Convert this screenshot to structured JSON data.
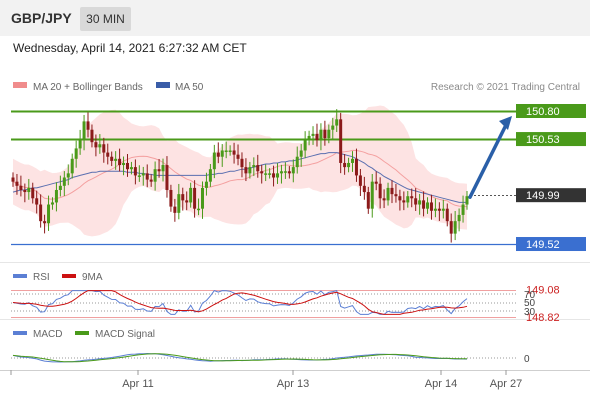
{
  "header": {
    "symbol": "GBP/JPY",
    "timeframe": "30 MIN"
  },
  "datetime": "Wednesday, April 14, 2021 6:27:32 AM CET",
  "legend": {
    "items": [
      {
        "label": "MA 20 + Bollinger Bands",
        "color": "#f08c8c"
      },
      {
        "label": "MA 50",
        "color": "#3a5da8"
      }
    ],
    "research": "Research © 2021 Trading Central"
  },
  "rsi_legend": [
    {
      "label": "RSI",
      "color": "#5b7fd4"
    },
    {
      "label": "9MA",
      "color": "#cc1111"
    }
  ],
  "macd_legend": [
    {
      "label": "MACD",
      "color": "#5b7fd4"
    },
    {
      "label": "MACD Signal",
      "color": "#4a9a1a"
    }
  ],
  "colors": {
    "resistance": "#4a9a1a",
    "support": "#3a6fd0",
    "target_low": "#cc2222",
    "current": "#333333",
    "bull_candle": "#4a9a1a",
    "bear_candle": "#8b1a1a",
    "bollinger_fill": "#fde3e3",
    "ma20": "#f4a0a0",
    "ma50": "#5a6fb0",
    "arrow": "#2a5fa8"
  },
  "chart_data": {
    "type": "line",
    "title": "GBP/JPY",
    "timeframe": "30 MIN",
    "x_ticks": [
      "Apr 11",
      "Apr 13",
      "Apr 14",
      "Apr 27"
    ],
    "levels": [
      {
        "value": 150.8,
        "label": "150.80",
        "kind": "resistance"
      },
      {
        "value": 150.53,
        "label": "150.53",
        "kind": "resistance"
      },
      {
        "value": 149.99,
        "label": "149.99",
        "kind": "current"
      },
      {
        "value": 149.52,
        "label": "149.52",
        "kind": "support"
      },
      {
        "value": 149.08,
        "label": "149.08",
        "kind": "target"
      },
      {
        "value": 148.82,
        "label": "148.82",
        "kind": "target"
      }
    ],
    "close": [
      150.12,
      150.08,
      150.04,
      150.02,
      150.06,
      149.96,
      149.9,
      149.74,
      149.72,
      149.9,
      149.92,
      150.04,
      150.08,
      150.16,
      150.2,
      150.34,
      150.44,
      150.52,
      150.7,
      150.62,
      150.5,
      150.45,
      150.48,
      150.4,
      150.36,
      150.32,
      150.34,
      150.28,
      150.3,
      150.24,
      150.26,
      150.18,
      150.18,
      150.2,
      150.14,
      150.12,
      150.24,
      150.22,
      150.28,
      150.04,
      149.88,
      149.82,
      150.0,
      149.94,
      149.92,
      150.06,
      149.86,
      149.86,
      150.06,
      150.12,
      150.24,
      150.4,
      150.36,
      150.42,
      150.42,
      150.42,
      150.38,
      150.34,
      150.26,
      150.2,
      150.26,
      150.28,
      150.22,
      150.2,
      150.2,
      150.2,
      150.16,
      150.2,
      150.22,
      150.22,
      150.2,
      150.26,
      150.36,
      150.42,
      150.52,
      150.56,
      150.58,
      150.52,
      150.62,
      150.54,
      150.62,
      150.66,
      150.72,
      150.3,
      150.26,
      150.3,
      150.34,
      150.18,
      150.08,
      150.02,
      149.86,
      150.12,
      150.1,
      149.96,
      149.94,
      150.06,
      150.0,
      149.98,
      149.94,
      149.92,
      149.98,
      149.96,
      149.9,
      149.94,
      149.86,
      149.92,
      149.84,
      149.86,
      149.84,
      149.86,
      149.74,
      149.62,
      149.74,
      149.8,
      149.9,
      149.98
    ],
    "ma50": [
      150.02,
      150.03,
      150.04,
      150.04,
      150.05,
      150.06,
      150.06,
      150.07,
      150.08,
      150.09,
      150.1,
      150.11,
      150.12,
      150.13,
      150.14,
      150.16,
      150.17,
      150.18,
      150.19,
      150.2,
      150.21,
      150.21,
      150.22,
      150.22,
      150.22,
      150.22,
      150.22,
      150.22,
      150.22,
      150.21,
      150.21,
      150.21,
      150.2,
      150.2,
      150.19,
      150.19,
      150.18,
      150.18,
      150.18,
      150.18,
      150.18,
      150.18,
      150.18,
      150.18,
      150.18,
      150.18,
      150.18,
      150.18,
      150.18,
      150.18,
      150.19,
      150.19,
      150.2,
      150.2,
      150.21,
      150.22,
      150.22,
      150.23,
      150.24,
      150.24,
      150.25,
      150.26,
      150.27,
      150.28,
      150.29,
      150.29,
      150.3,
      150.3,
      150.31,
      150.31,
      150.32,
      150.32,
      150.33,
      150.34,
      150.35,
      150.36,
      150.37,
      150.38,
      150.39,
      150.39,
      150.4,
      150.4,
      150.4,
      150.39,
      150.38,
      150.37,
      150.36,
      150.34,
      150.32,
      150.3,
      150.27,
      150.25,
      150.22,
      150.2,
      150.17,
      150.15,
      150.13,
      150.11,
      150.09,
      150.07,
      150.05,
      150.04,
      150.03,
      150.02,
      150.01,
      150.0,
      149.99,
      149.98,
      149.97,
      149.96,
      149.95,
      149.94,
      149.93,
      149.92,
      149.92,
      149.92
    ],
    "bollinger": {
      "period": 20,
      "width": 0.22
    },
    "forecast": {
      "from": 149.99,
      "to": 150.8
    },
    "rsi": {
      "levels": [
        70,
        50,
        30
      ],
      "tick_labels": [
        "70",
        "50",
        "30"
      ]
    },
    "macd": {
      "zero_label": "0"
    }
  }
}
